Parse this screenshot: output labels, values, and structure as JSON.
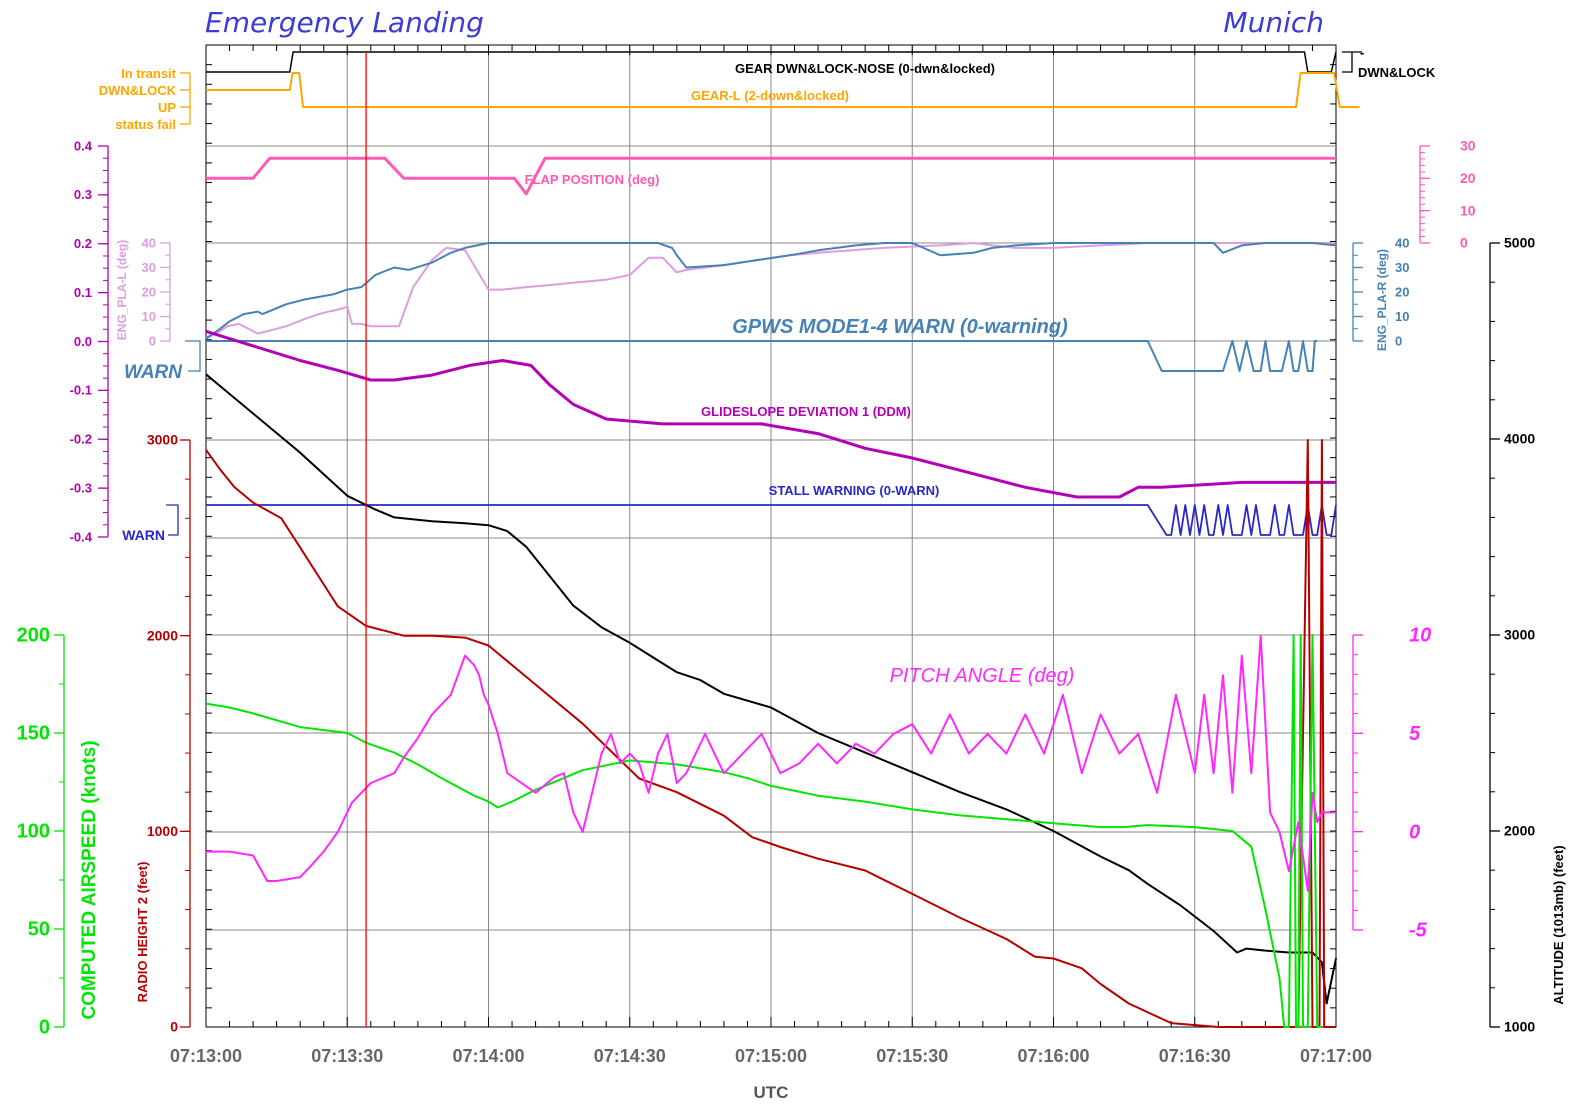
{
  "header": {
    "left": "Emergency Landing",
    "right": "Munich"
  },
  "colors": {
    "gear_nose": "#000000",
    "gear_l": "#ffa500",
    "flap": "#ff5ab4",
    "pla_l": "#dc9ee0",
    "pla_r": "#4682b4",
    "gpws": "#4682b4",
    "glideslope": "#b400b4",
    "stall": "#2828c8",
    "altitude": "#000000",
    "radio": "#b40000",
    "airspeed": "#00e600",
    "pitch": "#ff28ff",
    "event": "#ff0000"
  },
  "chart_data": {
    "type": "line",
    "title": "",
    "xlabel": "UTC",
    "x_ticks": [
      "07:13:00",
      "07:13:30",
      "07:14:00",
      "07:14:30",
      "07:15:00",
      "07:15:30",
      "07:16:00",
      "07:16:30",
      "07:17:00"
    ],
    "x_range": [
      "07:13:00",
      "07:17:00"
    ],
    "event_marker_time": "07:13:34",
    "axes": {
      "gear_states": {
        "labels": [
          "In transit",
          "DWN&LOCK",
          "UP",
          "status fail"
        ]
      },
      "nose_states": {
        "labels": [
          "-",
          "DWN&LOCK"
        ]
      },
      "glideslope": {
        "label": "",
        "ylim": [
          -0.4,
          0.4
        ],
        "ticks": [
          "-0.4",
          "-0.3",
          "-0.2",
          "-0.1",
          "0.0",
          "0.1",
          "0.2",
          "0.3",
          "0.4"
        ]
      },
      "pla_l": {
        "label": "ENG_PLA-L (deg)",
        "ylim": [
          0,
          40
        ],
        "ticks": [
          "0",
          "10",
          "20",
          "30",
          "40"
        ]
      },
      "pla_r": {
        "label": "ENG_PLA-R (deg)",
        "ylim": [
          0,
          40
        ],
        "ticks": [
          "0",
          "10",
          "20",
          "30",
          "40"
        ]
      },
      "flap": {
        "label": "",
        "ylim": [
          0,
          30
        ],
        "ticks": [
          "0",
          "10",
          "20",
          "30"
        ]
      },
      "gpws_warn": {
        "label": "WARN"
      },
      "stall_warn": {
        "label": "WARN"
      },
      "radio_height": {
        "label": "RADIO HEIGHT 2 (feet)",
        "ylim": [
          0,
          3000
        ],
        "ticks": [
          "0",
          "1000",
          "2000",
          "3000"
        ]
      },
      "airspeed": {
        "label": "COMPUTED AIRSPEED (knots)",
        "ylim": [
          0,
          200
        ],
        "ticks": [
          "0",
          "50",
          "100",
          "150",
          "200"
        ]
      },
      "pitch": {
        "label": "",
        "ylim": [
          -5,
          10
        ],
        "ticks": [
          "-5",
          "0",
          "5",
          "10"
        ]
      },
      "altitude": {
        "label": "ALTITUDE (1013mb) (feet)",
        "ylim": [
          1000,
          5000
        ],
        "ticks": [
          "1000",
          "2000",
          "3000",
          "4000",
          "5000"
        ]
      }
    },
    "series": [
      {
        "name": "GEAR DWN&LOCK-NOSE (0-dwn&locked)",
        "axis": "nose",
        "x": [
          0,
          17.8,
          18.5,
          233.3,
          234,
          239,
          240,
          240
        ],
        "y": [
          0,
          0,
          1,
          1,
          0,
          0,
          1,
          1
        ]
      },
      {
        "name": "GEAR-L (2-down&locked)",
        "axis": "gear",
        "x": [
          0,
          17.8,
          18.4,
          19.8,
          20.6,
          231.5,
          232.5,
          239.6,
          240.8,
          245
        ],
        "y": [
          2,
          2,
          3,
          3,
          1,
          1,
          3,
          3,
          1,
          1
        ]
      },
      {
        "name": "FLAP POSITION (deg)",
        "axis": "flap",
        "x": [
          0,
          10,
          13.5,
          38,
          42,
          46,
          61,
          63,
          64.5,
          65.5,
          68,
          72,
          81,
          240
        ],
        "y": [
          20,
          20,
          26.2,
          26.2,
          20,
          20,
          20,
          20,
          20,
          20,
          15.2,
          26.2,
          26.2,
          26.2
        ]
      },
      {
        "name": "ENG_PLA-L",
        "axis": "pla_l",
        "x": [
          0,
          3,
          4.5,
          7,
          11,
          17,
          21,
          24,
          26,
          28.5,
          30,
          31,
          33,
          35,
          37,
          41,
          44,
          48,
          51,
          55,
          60,
          61,
          62,
          63,
          68,
          74,
          79,
          85,
          90,
          94,
          97,
          99,
          100,
          102,
          110,
          117,
          124,
          130,
          144,
          156,
          163,
          167,
          172,
          180,
          190,
          200,
          208,
          215,
          222,
          228,
          232,
          235,
          239,
          240
        ],
        "y": [
          1,
          4,
          6,
          7,
          3,
          6,
          9,
          11,
          12,
          13,
          14,
          7,
          7,
          6,
          6,
          6,
          22,
          33,
          38,
          37,
          21,
          21,
          21,
          21,
          22,
          23,
          24,
          25,
          27,
          34,
          34,
          30,
          28,
          29,
          31,
          33,
          35,
          36,
          38,
          39,
          40,
          39,
          38,
          38,
          39,
          40,
          40,
          40,
          40,
          40,
          40,
          40,
          40,
          39
        ]
      },
      {
        "name": "ENG_PLA-R",
        "axis": "pla_r",
        "x": [
          0,
          3,
          5,
          8,
          11,
          12,
          17,
          21,
          24,
          27,
          30,
          33,
          36,
          40,
          43,
          48,
          52,
          55,
          60,
          62,
          64,
          70,
          76,
          80,
          86,
          96,
          99,
          100,
          102,
          110,
          117,
          124,
          130,
          138,
          144,
          150,
          156,
          163,
          167,
          172,
          180,
          190,
          200,
          208,
          212,
          214,
          216,
          220,
          225,
          230,
          235,
          240
        ],
        "y": [
          1,
          5,
          8,
          11,
          12,
          11,
          15,
          17,
          18,
          19,
          21,
          22,
          27,
          30,
          29,
          32,
          36,
          38,
          40,
          40,
          40,
          40,
          40,
          40,
          40,
          40,
          38,
          35,
          30,
          31,
          33,
          35,
          37,
          39,
          40,
          40,
          35,
          36,
          38,
          39,
          40,
          40,
          40,
          40,
          40,
          40,
          36,
          39,
          40,
          40,
          40,
          39
        ]
      },
      {
        "name": "GPWS MODE1-4 WARN (0-warning)",
        "axis": "gpws",
        "x": [
          0,
          200,
          203,
          216,
          218,
          219.5,
          221,
          222.5,
          224,
          225,
          226,
          228.5,
          230,
          231,
          232,
          233,
          234,
          235,
          235.5,
          236
        ],
        "y": [
          1,
          1,
          0,
          0,
          1,
          0,
          1,
          0,
          0,
          1,
          0,
          0,
          1,
          0,
          0,
          1,
          0,
          0,
          1,
          1
        ]
      },
      {
        "name": "GLIDESLOPE DEVIATION 1 (DDM)",
        "axis": "glideslope",
        "x": [
          0,
          10,
          20,
          28,
          35,
          40,
          48,
          56,
          63,
          69,
          73,
          78,
          85,
          97,
          108,
          118,
          130,
          140,
          150,
          162,
          174,
          185,
          194,
          198,
          203,
          220,
          238,
          240
        ],
        "y": [
          0.02,
          -0.01,
          -0.04,
          -0.06,
          -0.08,
          -0.08,
          -0.07,
          -0.05,
          -0.04,
          -0.05,
          -0.09,
          -0.13,
          -0.16,
          -0.17,
          -0.17,
          -0.17,
          -0.19,
          -0.22,
          -0.24,
          -0.27,
          -0.3,
          -0.32,
          -0.32,
          -0.3,
          -0.3,
          -0.29,
          -0.29,
          -0.29
        ]
      },
      {
        "name": "STALL WARNING (0-WARN)",
        "axis": "stall",
        "x": [
          0,
          200,
          204,
          205,
          206,
          207,
          208,
          209,
          210,
          211,
          212,
          213,
          214,
          215,
          216,
          217,
          218,
          219,
          220,
          221,
          222,
          223,
          224,
          225,
          226,
          227,
          228,
          229,
          230,
          231,
          232,
          233,
          234,
          235,
          236,
          237,
          238,
          239,
          240
        ],
        "y": [
          1,
          1,
          0,
          0,
          1,
          0,
          1,
          0,
          1,
          0,
          1,
          0,
          0,
          1,
          0,
          1,
          0,
          0,
          0,
          1,
          0,
          1,
          0,
          0,
          0,
          1,
          0,
          0,
          1,
          0,
          0,
          0,
          1,
          0,
          0,
          1,
          0,
          0,
          1
        ]
      },
      {
        "name": "ALTITUDE (1013mb) (feet)",
        "axis": "altitude",
        "x": [
          0,
          5,
          10,
          20,
          30,
          36,
          40,
          48,
          55,
          60,
          64,
          68,
          72,
          78,
          84,
          90,
          96,
          100,
          105,
          110,
          120,
          130,
          140,
          150,
          160,
          170,
          180,
          190,
          196,
          200,
          207,
          214,
          219,
          221,
          225,
          230,
          235,
          237,
          238,
          240
        ],
        "y": [
          4330,
          4230,
          4130,
          3930,
          3710,
          3640,
          3600,
          3580,
          3570,
          3560,
          3530,
          3450,
          3330,
          3150,
          3040,
          2960,
          2870,
          2810,
          2770,
          2700,
          2630,
          2500,
          2400,
          2300,
          2200,
          2110,
          2000,
          1870,
          1800,
          1730,
          1620,
          1490,
          1380,
          1400,
          1390,
          1380,
          1380,
          1330,
          1120,
          1350
        ]
      },
      {
        "name": "RADIO HEIGHT 2 (feet)",
        "axis": "radio",
        "x": [
          0,
          3,
          6,
          10,
          16,
          20,
          24,
          28,
          34,
          42,
          48,
          55,
          60,
          70,
          80,
          86,
          92,
          100,
          110,
          116,
          122,
          130,
          140,
          150,
          160,
          170,
          176,
          180,
          186,
          190,
          196,
          205,
          215,
          222,
          228,
          232,
          234,
          235,
          236,
          236.5,
          237,
          237.5,
          238,
          238.5,
          239,
          240
        ],
        "y": [
          2950,
          2850,
          2760,
          2680,
          2600,
          2450,
          2300,
          2150,
          2050,
          2000,
          2000,
          1990,
          1950,
          1750,
          1550,
          1410,
          1270,
          1200,
          1080,
          970,
          920,
          860,
          800,
          680,
          560,
          450,
          360,
          350,
          300,
          220,
          120,
          20,
          0,
          0,
          0,
          0,
          3000,
          0,
          0,
          0,
          3000,
          0,
          0,
          0,
          0,
          0
        ]
      },
      {
        "name": "COMPUTED AIRSPEED (knots)",
        "axis": "airspeed",
        "x": [
          0,
          5,
          10,
          20,
          30,
          34,
          40,
          45,
          50,
          57,
          60,
          62,
          65,
          70,
          80,
          90,
          100,
          110,
          115,
          120,
          130,
          140,
          150,
          160,
          170,
          180,
          190,
          195,
          200,
          210,
          218,
          222,
          225,
          228,
          229,
          230,
          231,
          231.5,
          232,
          232.5,
          233,
          234,
          235,
          236,
          237
        ],
        "y": [
          165,
          163,
          160,
          153,
          150,
          145,
          140,
          134,
          127,
          118,
          115,
          112,
          115,
          121,
          131,
          136,
          134,
          130,
          127,
          123,
          118,
          115,
          111,
          108,
          106,
          104,
          102,
          102,
          103,
          102,
          100,
          92,
          60,
          25,
          0,
          0,
          200,
          0,
          0,
          200,
          0,
          0,
          200,
          0,
          0
        ]
      },
      {
        "name": "PITCH ANGLE (deg)",
        "axis": "pitch",
        "x": [
          0,
          5,
          10,
          13,
          15,
          20,
          22,
          25,
          28,
          31,
          35,
          40,
          42,
          45,
          48,
          52,
          55,
          57,
          58,
          59,
          60,
          62,
          64,
          70,
          74,
          76,
          78,
          80,
          82,
          84,
          86,
          88,
          90,
          92,
          94,
          96,
          98,
          100,
          102,
          104,
          106,
          110,
          114,
          118,
          122,
          126,
          130,
          134,
          138,
          142,
          146,
          150,
          154,
          158,
          162,
          166,
          170,
          174,
          178,
          182,
          186,
          190,
          194,
          198,
          202,
          206,
          210,
          212,
          214,
          216,
          218,
          220,
          222,
          224,
          226,
          228,
          229,
          230,
          232,
          234,
          235,
          236,
          237,
          238,
          239,
          240
        ],
        "y": [
          -1,
          -1,
          -1.2,
          -2.5,
          -2.5,
          -2.3,
          -1.8,
          -1,
          0,
          1.5,
          2.5,
          3,
          3.8,
          4.8,
          6,
          7,
          9,
          8.5,
          8,
          7,
          6.5,
          5,
          3,
          2,
          2.8,
          3,
          1,
          0,
          2,
          4,
          5,
          3.5,
          4,
          3.5,
          2,
          4,
          5,
          2.5,
          3,
          4,
          5,
          3,
          4,
          5,
          3,
          3.5,
          4.5,
          3.5,
          4.5,
          4,
          5,
          5.5,
          4,
          6,
          4,
          5,
          4,
          6,
          4,
          7,
          3,
          6,
          4,
          5,
          2,
          7,
          3,
          7,
          3,
          8,
          2,
          9,
          3,
          10,
          1,
          0,
          -1,
          -2,
          0.5,
          -3,
          2,
          0.5,
          1,
          1,
          1,
          1
        ]
      }
    ],
    "labels": [
      "GEAR DWN&LOCK-NOSE (0-dwn&locked)",
      "GEAR-L (2-down&locked)",
      "FLAP POSITION (deg)",
      "GPWS MODE1-4 WARN (0-warning)",
      "GLIDESLOPE DEVIATION 1 (DDM)",
      "STALL WARNING (0-WARN)",
      "PITCH ANGLE (deg)"
    ]
  }
}
